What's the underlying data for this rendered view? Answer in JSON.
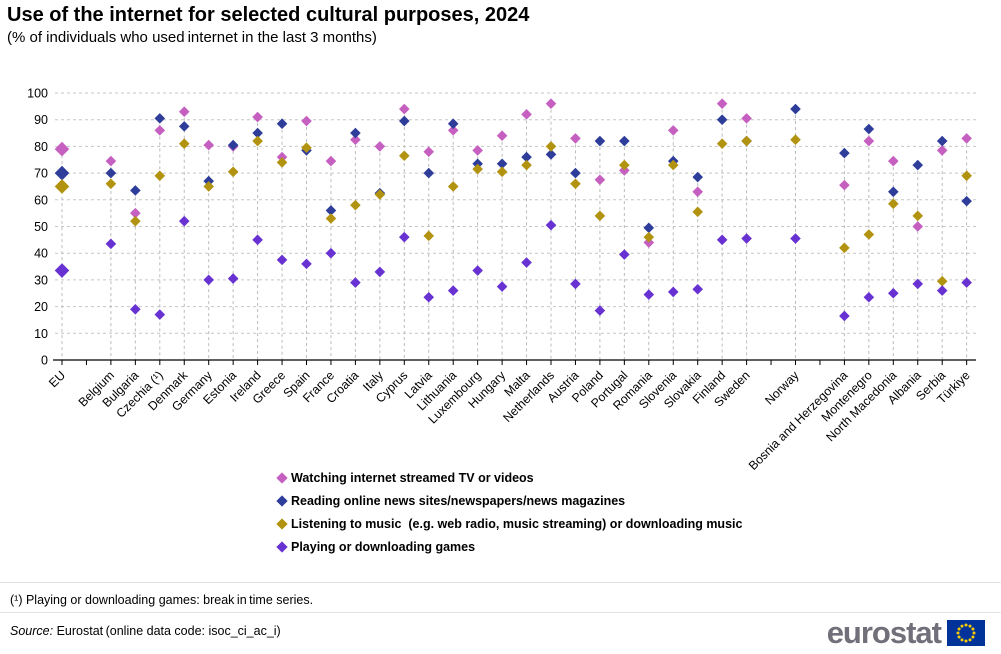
{
  "title": "Use of the internet for selected cultural purposes, 2024",
  "subtitle": "(% of individuals who used internet in the last 3 months)",
  "footnote": "(¹) Playing or downloading games: break in time series.",
  "source": {
    "prefix": "Source:",
    "text": " Eurostat (online data code: isoc_ci_ac_i)"
  },
  "logo": {
    "text": "eurostat",
    "flag_blue": "#003399",
    "star_yellow": "#ffcc00"
  },
  "y_axis": {
    "ticks": [
      0,
      10,
      20,
      30,
      40,
      50,
      60,
      70,
      80,
      90,
      100
    ]
  },
  "chart_data": {
    "type": "scatter",
    "title": "Use of the internet for selected cultural purposes, 2024",
    "ylabel": "% of individuals",
    "ylim": [
      0,
      100
    ],
    "grid": "horizontal-dashed",
    "legend_position": "bottom",
    "categories": [
      "EU",
      "Belgium",
      "Bulgaria",
      "Czechia (¹)",
      "Denmark",
      "Germany",
      "Estonia",
      "Ireland",
      "Greece",
      "Spain",
      "France",
      "Croatia",
      "Italy",
      "Cyprus",
      "Latvia",
      "Lithuania",
      "Luxembourg",
      "Hungary",
      "Malta",
      "Netherlands",
      "Austria",
      "Poland",
      "Portugal",
      "Romania",
      "Slovenia",
      "Slovakia",
      "Finland",
      "Sweden",
      "Norway",
      "Bosnia and Herzegovina",
      "Montenegro",
      "North Macedonia",
      "Albania",
      "Serbia",
      "Türkiye"
    ],
    "series": [
      {
        "name": "Watching internet streamed TV or videos",
        "color": "#c55fc0",
        "values": [
          79,
          74.5,
          55,
          86,
          93,
          80.5,
          80,
          91,
          76,
          89.5,
          74.5,
          82.5,
          80,
          94,
          78,
          86,
          78.5,
          84,
          92,
          96,
          83,
          67.5,
          71,
          44,
          86,
          63,
          96,
          90.5,
          null,
          65.5,
          82,
          74.5,
          50,
          78.5,
          83
        ]
      },
      {
        "name": "Reading online news sites/newspapers/news magazines",
        "color": "#2e3d99",
        "values": [
          70,
          70,
          63.5,
          90.5,
          87.5,
          67,
          80.5,
          85,
          88.5,
          78.5,
          56,
          85,
          62.5,
          89.5,
          70,
          88.5,
          73.5,
          73.5,
          76,
          77,
          70,
          82,
          82,
          49.5,
          74.5,
          68.5,
          90,
          82,
          94,
          77.5,
          86.5,
          63,
          73,
          82,
          59.5
        ]
      },
      {
        "name": "Listening to music  (e.g. web radio, music streaming) or downloading music",
        "color": "#b2930f",
        "values": [
          65,
          66,
          52,
          69,
          81,
          65,
          70.5,
          82,
          74,
          79.5,
          53,
          58,
          62,
          76.5,
          46.5,
          65,
          71.5,
          70.5,
          73,
          80,
          66,
          54,
          73,
          46,
          73,
          55.5,
          81,
          82,
          82.5,
          42,
          47,
          58.5,
          54,
          29.5,
          69
        ]
      },
      {
        "name": "Playing or downloading games",
        "color": "#6832d3",
        "values": [
          33.5,
          43.5,
          19,
          17,
          52,
          30,
          30.5,
          45,
          37.5,
          36,
          40,
          29,
          33,
          46,
          23.5,
          26,
          33.5,
          27.5,
          36.5,
          50.5,
          28.5,
          18.5,
          39.5,
          24.5,
          25.5,
          26.5,
          45,
          45.5,
          45.5,
          16.5,
          23.5,
          25,
          28.5,
          26,
          29
        ]
      }
    ]
  }
}
